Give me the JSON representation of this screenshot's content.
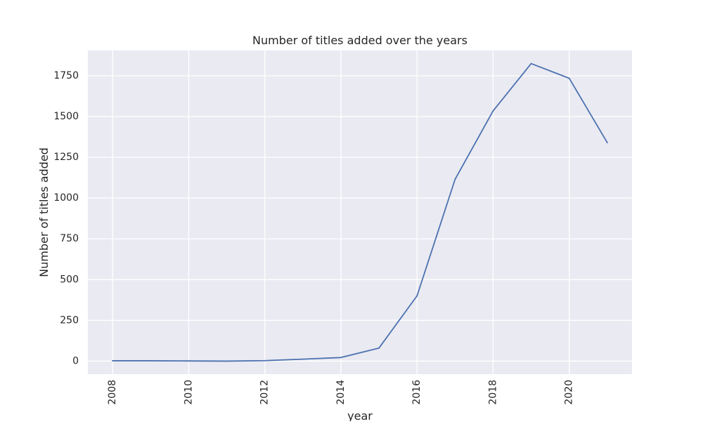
{
  "colors": {
    "plot_background": "#eaeaf2",
    "grid": "#ffffff",
    "series_line": "#4c72b0",
    "text": "#262626",
    "figure_background": "#ffffff"
  },
  "chart_data": {
    "type": "line",
    "title": "Number of titles added over the years",
    "xlabel": "year",
    "ylabel": "Number of titles added",
    "xlim": [
      2007.35,
      2021.65
    ],
    "ylim": [
      -80,
      1905
    ],
    "xticks": [
      2008,
      2010,
      2012,
      2014,
      2016,
      2018,
      2020
    ],
    "yticks": [
      0,
      250,
      500,
      750,
      1000,
      1250,
      1500,
      1750
    ],
    "x_tick_rotation": "vertical",
    "grid": true,
    "legend": "none",
    "series": [
      {
        "x": [
          2008,
          2009,
          2010,
          2011,
          2012,
          2013,
          2014,
          2015,
          2016,
          2017,
          2018,
          2019,
          2020,
          2021
        ],
        "values": [
          2,
          2,
          1,
          0,
          3,
          12,
          22,
          80,
          400,
          1115,
          1535,
          1825,
          1735,
          1340
        ]
      }
    ]
  }
}
